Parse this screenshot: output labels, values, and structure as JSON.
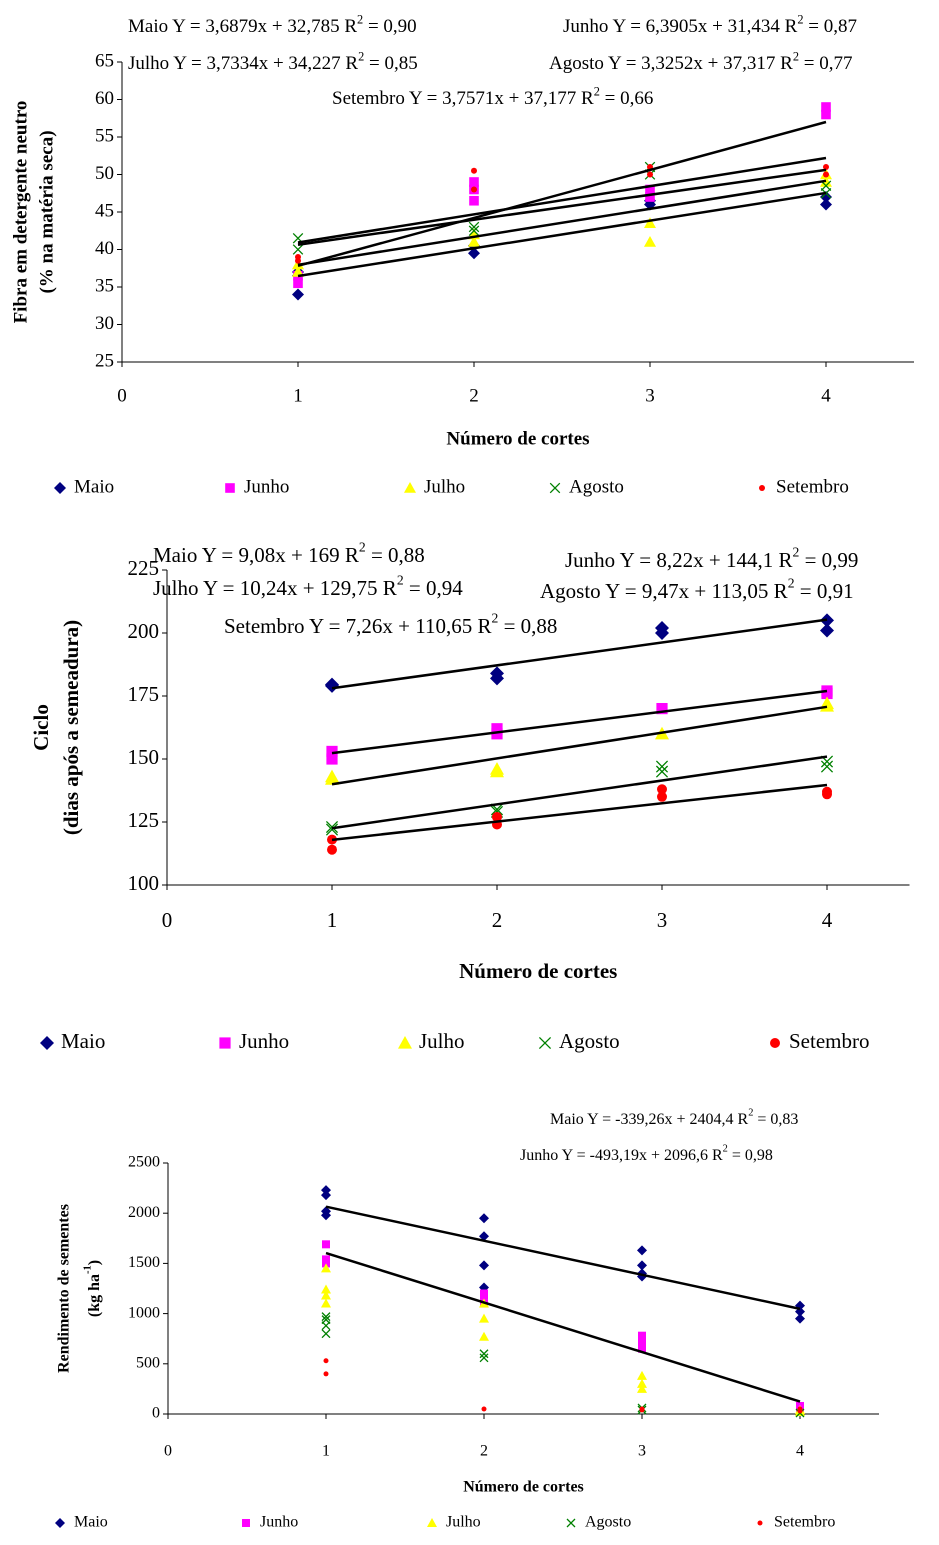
{
  "chart_data": [
    {
      "type": "scatter",
      "y_label": [
        "Fibra em detergente neutro",
        "(% na matéria seca)"
      ],
      "x_label": "Número de cortes",
      "xlim": [
        0,
        4.5
      ],
      "xticks": [
        0,
        1,
        2,
        3,
        4
      ],
      "ylim": [
        25,
        65
      ],
      "yticks": [
        25,
        30,
        35,
        40,
        45,
        50,
        55,
        60,
        65
      ],
      "grid": false,
      "annotations": [
        {
          "text": "Maio Y = 3,6879x + 32,785 R",
          "sup": "2",
          "tail": " = 0,90"
        },
        {
          "text": "Junho Y = 6,3905x + 31,434 R",
          "sup": "2",
          "tail": " = 0,87"
        },
        {
          "text": "Julho Y = 3,7334x + 34,227 R",
          "sup": "2",
          "tail": " = 0,85"
        },
        {
          "text": "Agosto Y = 3,3252x + 37,317 R",
          "sup": "2",
          "tail": " = 0,77"
        },
        {
          "text": "Setembro Y = 3,7571x + 37,177 R",
          "sup": "2",
          "tail": " = 0,66"
        }
      ],
      "series": [
        {
          "name": "Maio",
          "color": "#000080",
          "marker": "diamond",
          "x": [
            1,
            1,
            1,
            2,
            2,
            3,
            3,
            4,
            4
          ],
          "y": [
            34,
            36.5,
            37,
            39.5,
            40.5,
            46,
            46.5,
            46,
            47
          ],
          "trend": {
            "x": [
              1,
              4
            ],
            "y": [
              36.47,
              47.54
            ]
          }
        },
        {
          "name": "Junho",
          "color": "#FF00FF",
          "marker": "square",
          "x": [
            1,
            1,
            2,
            2,
            2,
            3,
            3,
            4,
            4
          ],
          "y": [
            35.5,
            36.5,
            46.5,
            48,
            49,
            47,
            48,
            58,
            59
          ],
          "trend": {
            "x": [
              1,
              4
            ],
            "y": [
              37.82,
              57.0
            ]
          }
        },
        {
          "name": "Julho",
          "color": "#FFFF00",
          "marker": "triangle",
          "x": [
            1,
            1,
            2,
            2,
            3,
            3,
            4,
            4
          ],
          "y": [
            37,
            38,
            41,
            42,
            41,
            43.5,
            49,
            50
          ],
          "trend": {
            "x": [
              1,
              4
            ],
            "y": [
              37.96,
              49.16
            ]
          }
        },
        {
          "name": "Agosto",
          "color": "#008000",
          "marker": "x",
          "x": [
            1,
            1,
            2,
            2,
            3,
            3,
            4,
            4
          ],
          "y": [
            40,
            41.5,
            42.5,
            43,
            50,
            51,
            47.5,
            48.5
          ],
          "trend": {
            "x": [
              1,
              4
            ],
            "y": [
              40.64,
              50.62
            ]
          }
        },
        {
          "name": "Setembro",
          "color": "#FF0000",
          "marker": "dot",
          "x": [
            1,
            1,
            2,
            2,
            3,
            3,
            4,
            4
          ],
          "y": [
            38.5,
            39,
            48,
            50.5,
            50,
            51,
            50,
            51
          ],
          "trend": {
            "x": [
              1,
              4
            ],
            "y": [
              40.93,
              52.2
            ]
          }
        }
      ]
    },
    {
      "type": "scatter",
      "y_label": [
        "Ciclo",
        "(dias após a semeadura)"
      ],
      "x_label": "Número de cortes",
      "xlim": [
        0,
        4.5
      ],
      "xticks": [
        0,
        1,
        2,
        3,
        4
      ],
      "ylim": [
        100,
        225
      ],
      "yticks": [
        100,
        125,
        150,
        175,
        200,
        225
      ],
      "grid": false,
      "annotations": [
        {
          "text": "Maio Y = 9,08x + 169 R",
          "sup": "2",
          "tail": " = 0,88"
        },
        {
          "text": "Junho Y = 8,22x + 144,1 R",
          "sup": "2",
          "tail": " = 0,99"
        },
        {
          "text": "Julho Y = 10,24x + 129,75 R",
          "sup": "2",
          "tail": " = 0,94"
        },
        {
          "text": "Agosto Y = 9,47x + 113,05 R",
          "sup": "2",
          "tail": " = 0,91"
        },
        {
          "text": "Setembro Y = 7,26x + 110,65 R",
          "sup": "2",
          "tail": " = 0,88"
        }
      ],
      "series": [
        {
          "name": "Maio",
          "color": "#000080",
          "marker": "diamond",
          "x": [
            1,
            1,
            2,
            2,
            3,
            3,
            4,
            4
          ],
          "y": [
            179,
            179.5,
            182,
            184,
            200,
            202,
            201,
            205
          ],
          "trend": {
            "x": [
              1,
              4
            ],
            "y": [
              178.08,
              205.32
            ]
          }
        },
        {
          "name": "Junho",
          "color": "#FF00FF",
          "marker": "square",
          "x": [
            1,
            1,
            2,
            2,
            3,
            4,
            4
          ],
          "y": [
            150,
            153,
            160,
            162,
            170,
            176,
            177
          ],
          "trend": {
            "x": [
              1,
              4
            ],
            "y": [
              152.32,
              177.0
            ]
          }
        },
        {
          "name": "Julho",
          "color": "#FFFF00",
          "marker": "triangle",
          "x": [
            1,
            1,
            2,
            2,
            3,
            4,
            4
          ],
          "y": [
            142,
            143,
            145,
            146,
            160,
            171,
            172
          ],
          "trend": {
            "x": [
              1,
              4
            ],
            "y": [
              139.99,
              170.71
            ]
          }
        },
        {
          "name": "Agosto",
          "color": "#008000",
          "marker": "x",
          "x": [
            1,
            1,
            2,
            2,
            3,
            3,
            4,
            4
          ],
          "y": [
            122,
            123,
            129,
            130,
            145,
            147,
            147,
            149
          ],
          "trend": {
            "x": [
              1,
              4
            ],
            "y": [
              122.52,
              150.93
            ]
          }
        },
        {
          "name": "Setembro",
          "color": "#FF0000",
          "marker": "dot",
          "x": [
            1,
            1,
            2,
            2,
            3,
            3,
            4,
            4
          ],
          "y": [
            114,
            118,
            124,
            127,
            135,
            138,
            136,
            137
          ],
          "trend": {
            "x": [
              1,
              4
            ],
            "y": [
              117.91,
              139.69
            ]
          }
        }
      ]
    },
    {
      "type": "scatter",
      "y_label": [
        "Rendimento de sementes",
        {
          "text": "(kg ha",
          "sup": "-1",
          "tail": ")"
        }
      ],
      "x_label": "Número de cortes",
      "xlim": [
        0,
        4.5
      ],
      "xticks": [
        0,
        1,
        2,
        3,
        4
      ],
      "ylim": [
        0,
        2500
      ],
      "yticks": [
        0,
        500,
        1000,
        1500,
        2000,
        2500
      ],
      "grid": false,
      "annotations": [
        {
          "text": "Maio Y = -339,26x + 2404,4 R",
          "sup": "2",
          "tail": " = 0,83"
        },
        {
          "text": "Junho Y = -493,19x + 2096,6 R",
          "sup": "2",
          "tail": " = 0,98"
        }
      ],
      "series": [
        {
          "name": "Maio",
          "color": "#000080",
          "marker": "diamond",
          "x": [
            1,
            1,
            1,
            1,
            2,
            2,
            2,
            2,
            3,
            3,
            3,
            3,
            4,
            4,
            4
          ],
          "y": [
            1980,
            2020,
            2180,
            2230,
            1260,
            1480,
            1770,
            1950,
            1370,
            1400,
            1480,
            1630,
            950,
            1020,
            1080
          ],
          "trend": {
            "x": [
              1,
              4
            ],
            "y": [
              2065.1,
              1047.4
            ]
          }
        },
        {
          "name": "Junho",
          "color": "#FF00FF",
          "marker": "square",
          "x": [
            1,
            1,
            1,
            2,
            2,
            2,
            3,
            3,
            3,
            4,
            4
          ],
          "y": [
            1500,
            1540,
            1690,
            1100,
            1180,
            1200,
            650,
            720,
            780,
            60,
            80
          ],
          "trend": {
            "x": [
              1,
              4
            ],
            "y": [
              1603.4,
              123.8
            ]
          }
        },
        {
          "name": "Julho",
          "color": "#FFFF00",
          "marker": "triangle",
          "x": [
            1,
            1,
            1,
            1,
            2,
            2,
            2,
            3,
            3,
            3,
            4,
            4
          ],
          "y": [
            1100,
            1180,
            1240,
            1450,
            770,
            950,
            1100,
            250,
            300,
            380,
            20,
            40
          ]
        },
        {
          "name": "Agosto",
          "color": "#008000",
          "marker": "x",
          "x": [
            1,
            1,
            1,
            1,
            2,
            2,
            3,
            3,
            4
          ],
          "y": [
            800,
            880,
            940,
            970,
            560,
            600,
            40,
            60,
            10
          ]
        },
        {
          "name": "Setembro",
          "color": "#FF0000",
          "marker": "dot",
          "x": [
            1,
            1,
            2,
            3,
            3,
            4,
            4
          ],
          "y": [
            400,
            530,
            50,
            40,
            50,
            30,
            50
          ]
        }
      ]
    }
  ]
}
